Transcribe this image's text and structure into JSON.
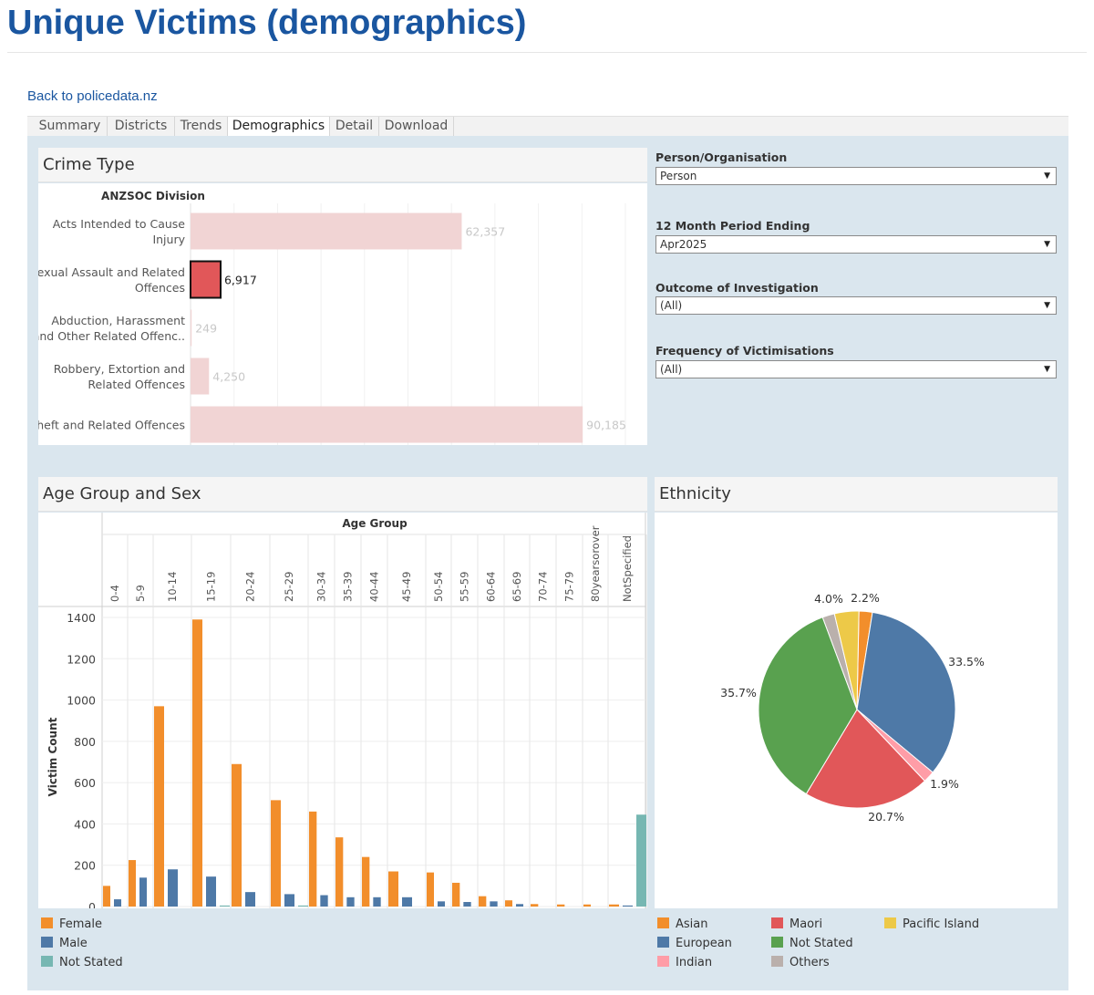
{
  "page": {
    "title": "Unique Victims (demographics)",
    "back_link": "Back to policedata.nz"
  },
  "tabs": [
    {
      "label": "Summary"
    },
    {
      "label": "Districts"
    },
    {
      "label": "Trends"
    },
    {
      "label": "Demographics",
      "active": true
    },
    {
      "label": "Detail"
    },
    {
      "label": "Download"
    }
  ],
  "filters": {
    "person_org": {
      "label": "Person/Organisation",
      "value": "Person"
    },
    "period": {
      "label": "12 Month Period Ending",
      "value": "Apr2025"
    },
    "outcome": {
      "label": "Outcome of Investigation",
      "value": "(All)"
    },
    "frequency": {
      "label": "Frequency of Victimisations",
      "value": "(All)"
    }
  },
  "colors": {
    "accent": "#1a56a0",
    "dashboard_bg": "#dae6ee",
    "female": "#f28e2b",
    "male": "#4e79a7",
    "not_stated_sex": "#76b7b2",
    "crime_selected": "#e15759",
    "crime_unselected": "#f1d4d4"
  },
  "icons": {
    "dropdown": "chevron-down-icon"
  },
  "crime_panel": {
    "title": "Crime Type",
    "column_header": "ANZSOC Division"
  },
  "age_panel": {
    "title": "Age Group and Sex",
    "column_header": "Age Group",
    "legend": [
      {
        "label": "Female",
        "color": "#f28e2b"
      },
      {
        "label": "Male",
        "color": "#4e79a7"
      },
      {
        "label": "Not Stated",
        "color": "#76b7b2"
      }
    ]
  },
  "ethnicity_panel": {
    "title": "Ethnicity",
    "legend": [
      {
        "label": "Asian",
        "color": "#f28e2b"
      },
      {
        "label": "European",
        "color": "#4e79a7"
      },
      {
        "label": "Indian",
        "color": "#ff9da7"
      },
      {
        "label": "Maori",
        "color": "#e15759"
      },
      {
        "label": "Not Stated",
        "color": "#59a14f"
      },
      {
        "label": "Others",
        "color": "#bab0ac"
      },
      {
        "label": "Pacific Island",
        "color": "#edc948"
      }
    ]
  },
  "chart_data": [
    {
      "type": "bar",
      "orientation": "horizontal",
      "title": "Crime Type",
      "ylabel": "ANZSOC Division",
      "categories": [
        [
          "Acts Intended to Cause",
          "Injury"
        ],
        [
          "Sexual Assault and Related",
          "Offences"
        ],
        [
          "Abduction, Harassment",
          "and Other Related Offenc.."
        ],
        [
          "Robbery, Extortion and",
          "Related Offences"
        ],
        [
          "Theft and Related Offences"
        ]
      ],
      "values": [
        62357,
        6917,
        249,
        4250,
        90185
      ],
      "value_labels": [
        "62,357",
        "6,917",
        "249",
        "4,250",
        "90,185"
      ],
      "selected_index": 1,
      "xlim": [
        0,
        100000
      ]
    },
    {
      "type": "bar",
      "title": "Age Group and Sex",
      "xlabel": "Age Group",
      "ylabel": "Victim Count",
      "categories": [
        "0-4",
        "5-9",
        "10-14",
        "15-19",
        "20-24",
        "25-29",
        "30-34",
        "35-39",
        "40-44",
        "45-49",
        "50-54",
        "55-59",
        "60-64",
        "65-69",
        "70-74",
        "75-79",
        "80yearsorover",
        "NotSpecified"
      ],
      "series": [
        {
          "name": "Female",
          "color": "#f28e2b",
          "values": [
            100,
            225,
            970,
            1390,
            690,
            515,
            460,
            335,
            240,
            170,
            165,
            115,
            50,
            30,
            12,
            10,
            10,
            10
          ]
        },
        {
          "name": "Male",
          "color": "#4e79a7",
          "values": [
            35,
            140,
            180,
            145,
            70,
            60,
            55,
            45,
            45,
            45,
            25,
            22,
            25,
            12,
            0,
            0,
            0,
            5
          ]
        },
        {
          "name": "Not Stated",
          "color": "#76b7b2",
          "values": [
            0,
            0,
            0,
            5,
            0,
            5,
            0,
            0,
            0,
            0,
            0,
            0,
            0,
            0,
            0,
            0,
            0,
            445
          ]
        }
      ],
      "ylim": [
        0,
        1400
      ],
      "yticks": [
        0,
        200,
        400,
        600,
        800,
        1000,
        1200,
        1400
      ],
      "grid": true
    },
    {
      "type": "pie",
      "title": "Ethnicity",
      "slices": [
        {
          "label": "Asian",
          "value": 2.2,
          "value_label": "2.2%",
          "color": "#f28e2b"
        },
        {
          "label": "European",
          "value": 33.5,
          "value_label": "33.5%",
          "color": "#4e79a7"
        },
        {
          "label": "Indian",
          "value": 1.9,
          "value_label": "1.9%",
          "color": "#ff9da7"
        },
        {
          "label": "Maori",
          "value": 20.7,
          "value_label": "20.7%",
          "color": "#e15759"
        },
        {
          "label": "Not Stated",
          "value": 35.7,
          "value_label": "35.7%",
          "color": "#59a14f"
        },
        {
          "label": "Others",
          "value": 2.0,
          "value_label": "",
          "color": "#bab0ac"
        },
        {
          "label": "Pacific Island",
          "value": 4.0,
          "value_label": "4.0%",
          "color": "#edc948"
        }
      ]
    }
  ]
}
